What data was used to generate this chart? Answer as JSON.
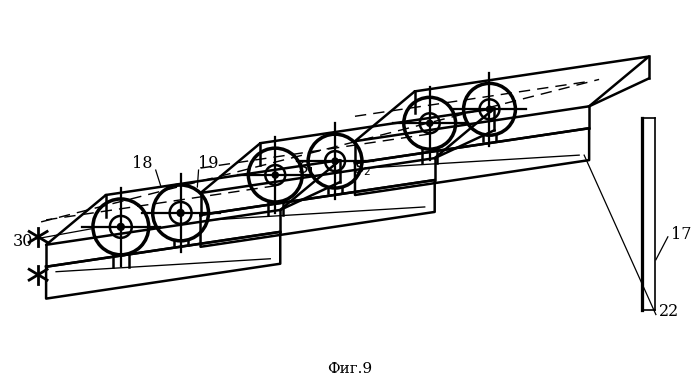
{
  "title": "Фиг.9",
  "title_fontsize": 11,
  "background_color": "#ffffff",
  "line_color": "#000000",
  "fig_w": 6.99,
  "fig_h": 3.85,
  "dpi": 100
}
